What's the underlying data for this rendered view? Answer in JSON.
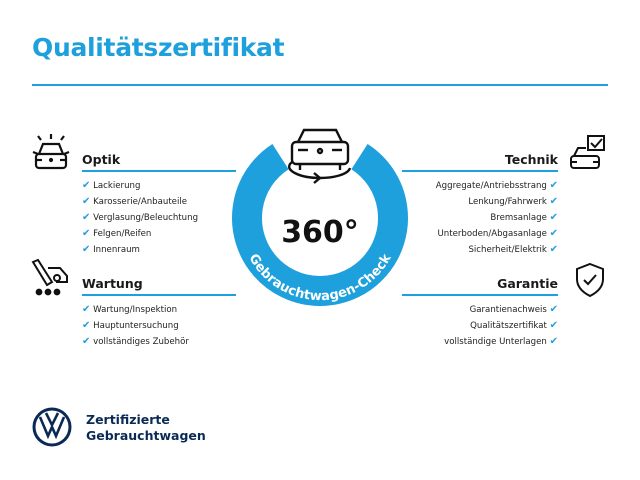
{
  "title": "Qualitätszertifikat",
  "center": {
    "big": "360°",
    "arc_text": "Gebrauchtwagen-Check",
    "icon": "car-rotate-icon"
  },
  "sections": {
    "optik": {
      "title": "Optik",
      "icon": "car-lights-icon",
      "items": [
        "Lackierung",
        "Karosserie/Anbauteile",
        "Verglasung/Beleuchtung",
        "Felgen/Reifen",
        "Innenraum"
      ]
    },
    "wartung": {
      "title": "Wartung",
      "icon": "service-tools-icon",
      "items": [
        "Wartung/Inspektion",
        "Hauptuntersuchung",
        "vollständiges Zubehör"
      ]
    },
    "technik": {
      "title": "Technik",
      "icon": "car-checklist-icon",
      "items": [
        "Aggregate/Antriebsstrang",
        "Lenkung/Fahrwerk",
        "Bremsanlage",
        "Unterboden/Abgasanlage",
        "Sicherheit/Elektrik"
      ]
    },
    "garantie": {
      "title": "Garantie",
      "icon": "shield-check-icon",
      "items": [
        "Garantienachweis",
        "Qualitätszertifikat",
        "vollständige Unterlagen"
      ]
    }
  },
  "check_mark": "✔",
  "brand": {
    "line1": "Zertifizierte",
    "line2": "Gebrauchtwagen",
    "logo": "vw-logo"
  },
  "colors": {
    "accent": "#1ea0dc",
    "brand_navy": "#0a2a55"
  }
}
